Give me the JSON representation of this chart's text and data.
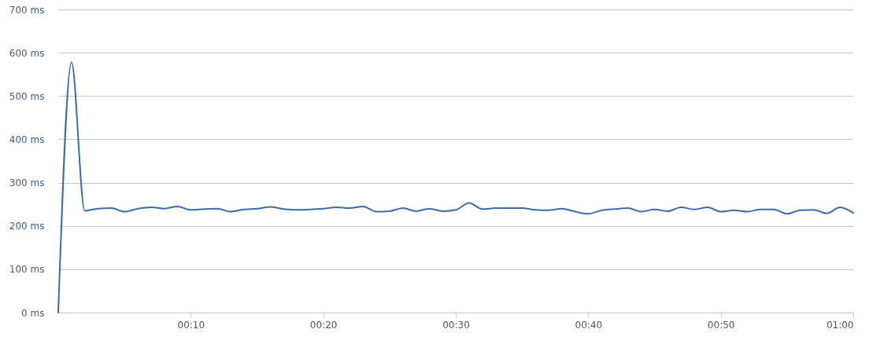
{
  "chart_data": {
    "type": "line",
    "x": [
      0,
      1,
      2,
      3,
      4,
      5,
      6,
      7,
      8,
      9,
      10,
      11,
      12,
      13,
      14,
      15,
      16,
      17,
      18,
      19,
      20,
      21,
      22,
      23,
      24,
      25,
      26,
      27,
      28,
      29,
      30,
      31,
      32,
      33,
      34,
      35,
      36,
      37,
      38,
      39,
      40,
      41,
      42,
      43,
      44,
      45,
      46,
      47,
      48,
      49,
      50,
      51,
      52,
      53,
      54,
      55,
      56,
      57,
      58,
      59,
      60
    ],
    "series": [
      {
        "color": "#3e6ca6",
        "values": [
          0,
          578,
          235,
          240,
          241,
          233,
          240,
          243,
          240,
          245,
          237,
          239,
          240,
          233,
          238,
          240,
          244,
          239,
          237,
          238,
          240,
          243,
          241,
          245,
          233,
          234,
          241,
          234,
          240,
          234,
          237,
          253,
          239,
          241,
          241,
          241,
          237,
          236,
          240,
          233,
          228,
          236,
          239,
          241,
          233,
          238,
          234,
          243,
          238,
          243,
          233,
          236,
          233,
          238,
          238,
          228,
          236,
          237,
          229,
          243,
          230
        ]
      }
    ],
    "xlim": [
      0,
      60
    ],
    "xticks": [
      {
        "value": 10,
        "label": "00:10"
      },
      {
        "value": 20,
        "label": "00:20"
      },
      {
        "value": 30,
        "label": "00:30"
      },
      {
        "value": 40,
        "label": "00:40"
      },
      {
        "value": 50,
        "label": "00:50"
      },
      {
        "value": 60,
        "label": "01:00"
      }
    ],
    "ylim": [
      0,
      700
    ],
    "yticks": [
      {
        "value": 0,
        "label": "0 ms"
      },
      {
        "value": 100,
        "label": "100 ms"
      },
      {
        "value": 200,
        "label": "200 ms"
      },
      {
        "value": 300,
        "label": "300 ms"
      },
      {
        "value": 400,
        "label": "400 ms"
      },
      {
        "value": 500,
        "label": "500 ms"
      },
      {
        "value": 600,
        "label": "600 ms"
      },
      {
        "value": 700,
        "label": "700 ms"
      }
    ],
    "grid": "y",
    "marker": "none",
    "line_style": "solid"
  }
}
